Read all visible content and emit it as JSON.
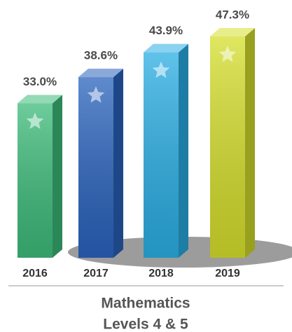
{
  "chart_data": {
    "type": "bar",
    "title": "Mathematics",
    "subtitle": "Levels 4 & 5",
    "categories": [
      "2016",
      "2017",
      "2018",
      "2019"
    ],
    "values": [
      33.0,
      38.6,
      43.9,
      47.3
    ],
    "value_labels": [
      "33.0%",
      "38.6%",
      "43.9%",
      "47.3%"
    ],
    "colors": [
      "#3dbb7a",
      "#2a63bd",
      "#2aaee3",
      "#d5de2c"
    ]
  }
}
